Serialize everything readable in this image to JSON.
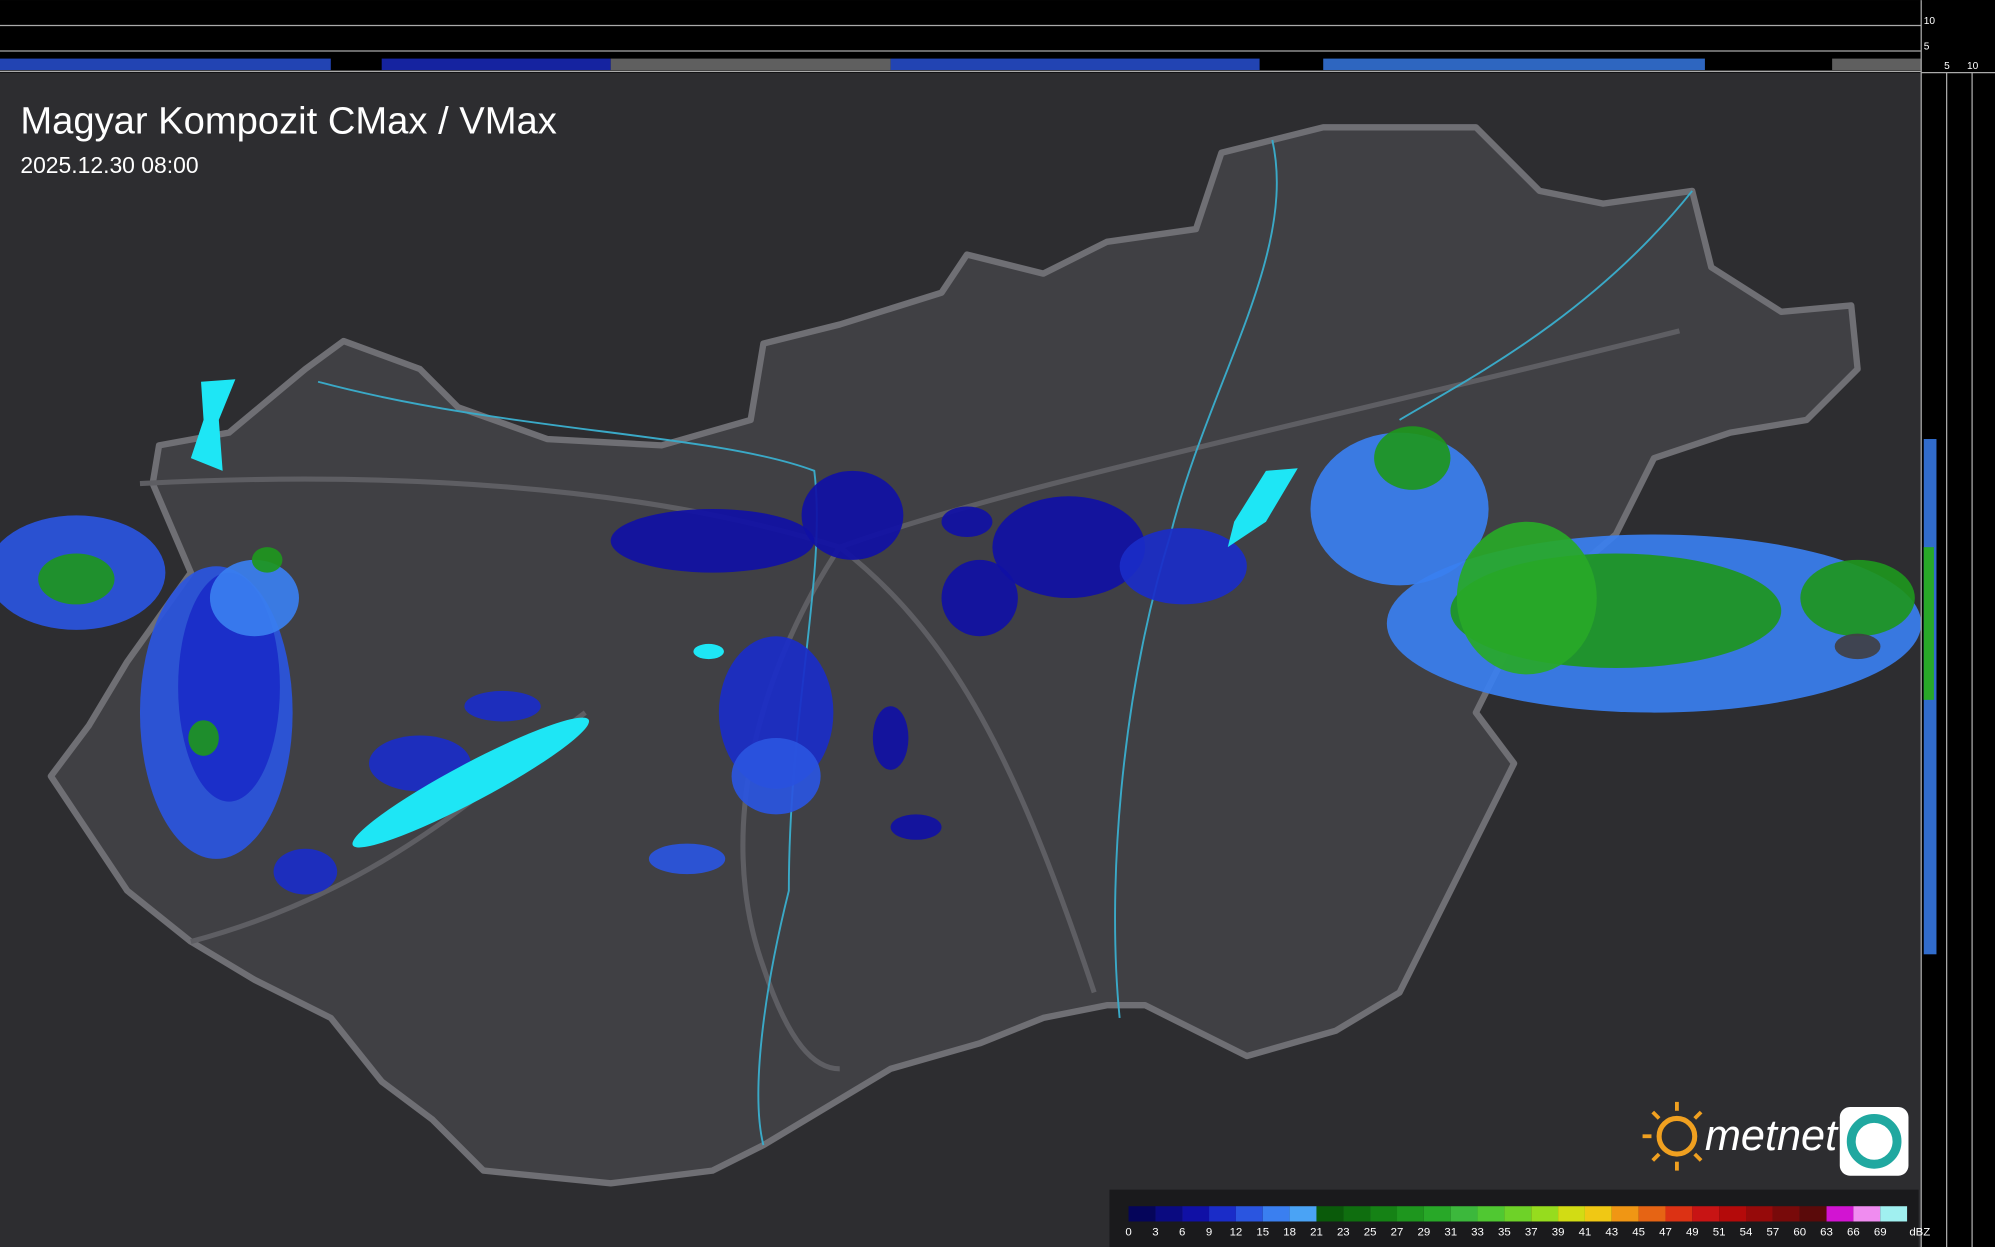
{
  "header": {
    "title": "Magyar Kompozit CMax / VMax",
    "timestamp": "2025.12.30 08:00"
  },
  "legend": {
    "values": [
      0,
      3,
      6,
      9,
      12,
      15,
      18,
      21,
      23,
      25,
      27,
      29,
      31,
      33,
      35,
      37,
      39,
      41,
      43,
      45,
      47,
      49,
      51,
      54,
      57,
      60,
      63,
      66,
      69
    ],
    "unit": "dBZ",
    "colors": [
      "#05055a",
      "#0a0a80",
      "#1010a5",
      "#1a2cc8",
      "#2a55e0",
      "#3a7ff0",
      "#4aa3f5",
      "#0a5a0a",
      "#0f6e0f",
      "#158215",
      "#1e961e",
      "#28a828",
      "#3cb83c",
      "#50c832",
      "#6ed228",
      "#96dc1e",
      "#d2dc14",
      "#f0c814",
      "#f09614",
      "#e66414",
      "#dc3214",
      "#c81414",
      "#b40a0a",
      "#960a0a",
      "#780a0a",
      "#5a0a0a",
      "#d214d2",
      "#f08cf0",
      "#a0f0f0"
    ]
  },
  "profile": {
    "top_ticks": [
      10,
      5
    ],
    "side_ticks": [
      5,
      10
    ]
  },
  "logo": {
    "text": "metnet"
  }
}
